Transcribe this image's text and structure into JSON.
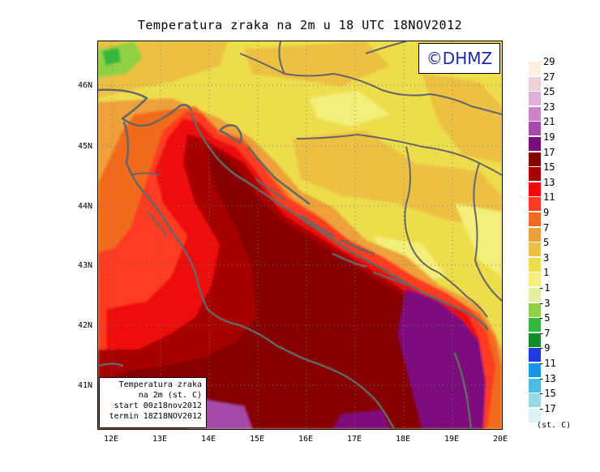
{
  "title": "Temperatura zraka na 2m u 18 UTC 18NOV2012",
  "logo": "©DHMZ",
  "info": {
    "line1": "Temperatura zraka",
    "line2": "na 2m (st. C)",
    "line3": "start 00z18nov2012",
    "line4": "termin 18Z18NOV2012"
  },
  "axes": {
    "lat_labels": [
      "46N",
      "45N",
      "44N",
      "43N",
      "42N",
      "41N"
    ],
    "lon_labels": [
      "12E",
      "13E",
      "14E",
      "15E",
      "16E",
      "17E",
      "18E",
      "19E",
      "20E"
    ],
    "lon_range": [
      11.7,
      20.0
    ],
    "lat_range": [
      40.3,
      46.8
    ],
    "grid": "dotted"
  },
  "legend": {
    "units": "(st. C)",
    "labels": [
      "29",
      "27",
      "25",
      "23",
      "21",
      "19",
      "17",
      "15",
      "13",
      "11",
      "9",
      "7",
      "5",
      "3",
      "1",
      "-1",
      "-3",
      "-5",
      "-7",
      "-9",
      "-11",
      "-13",
      "-15",
      "-17"
    ],
    "colors": [
      "#ffefe0",
      "#ecd1d9",
      "#e0b1d6",
      "#cc83c8",
      "#a44aa8",
      "#7d0c7b",
      "#870000",
      "#a80000",
      "#ee0b0b",
      "#ff3a20",
      "#f26a1e",
      "#eda03a",
      "#ecc043",
      "#eddc4c",
      "#f2ee77",
      "#dfeea0",
      "#8fd142",
      "#35b73f",
      "#0f8d2a",
      "#1f3ade",
      "#1598ea",
      "#4bbde6",
      "#98d7e3",
      "#d9f3f5"
    ]
  },
  "map": {
    "field": "2 m air temperature",
    "colors": {
      "land_yellow": "#eddc4c",
      "land_light": "#f2ee77",
      "land_orange": "#ecc043",
      "coast_orange": "#eda03a",
      "sea_outer": "#f26a1e",
      "sea_red": "#ff3a20",
      "sea_bright": "#ee0b0b",
      "sea_dark": "#a80000",
      "sea_darkest": "#870000",
      "warmest": "#7d0c7b",
      "cold_green": "#8fd142",
      "border_line": "#666666"
    }
  }
}
